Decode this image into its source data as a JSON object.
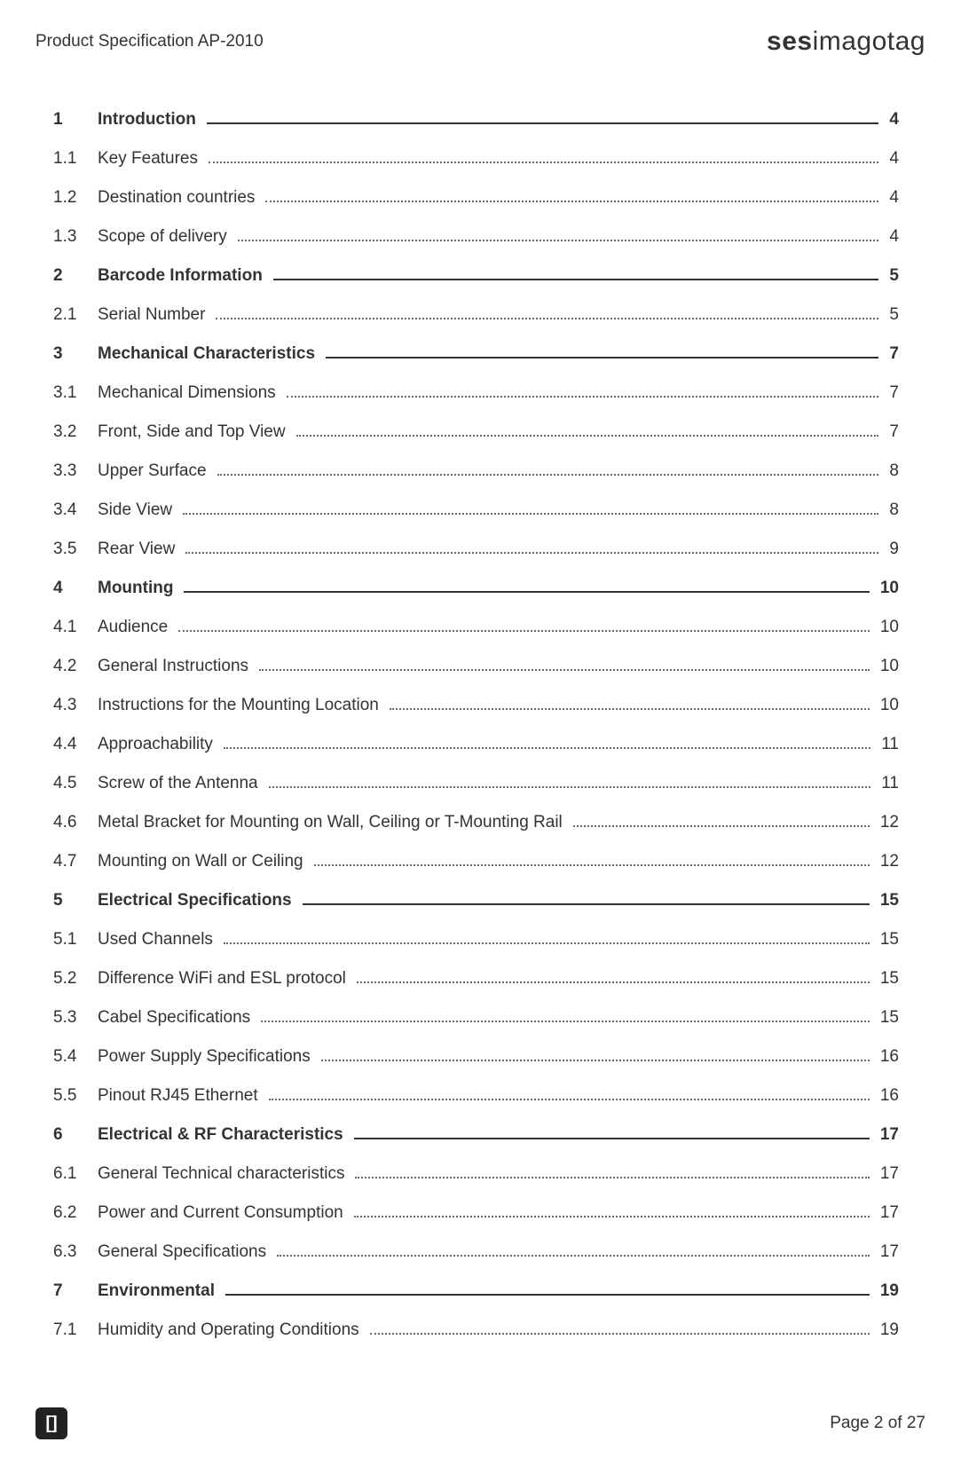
{
  "header": {
    "title": "Product Specification AP-2010",
    "logo_bold": "ses",
    "logo_light": "imagotag"
  },
  "toc": [
    {
      "num": "1",
      "label": "Introduction",
      "page": "4",
      "section": true
    },
    {
      "num": "1.1",
      "label": "Key Features",
      "page": "4",
      "section": false
    },
    {
      "num": "1.2",
      "label": "Destination countries",
      "page": "4",
      "section": false
    },
    {
      "num": "1.3",
      "label": "Scope of delivery",
      "page": "4",
      "section": false
    },
    {
      "num": "2",
      "label": "Barcode Information",
      "page": "5",
      "section": true
    },
    {
      "num": "2.1",
      "label": "Serial Number",
      "page": "5",
      "section": false
    },
    {
      "num": "3",
      "label": "Mechanical Characteristics",
      "page": "7",
      "section": true
    },
    {
      "num": "3.1",
      "label": "Mechanical Dimensions",
      "page": "7",
      "section": false
    },
    {
      "num": "3.2",
      "label": "Front, Side and Top View",
      "page": "7",
      "section": false
    },
    {
      "num": "3.3",
      "label": "Upper Surface",
      "page": "8",
      "section": false
    },
    {
      "num": "3.4",
      "label": "Side View",
      "page": "8",
      "section": false
    },
    {
      "num": "3.5",
      "label": "Rear View",
      "page": "9",
      "section": false
    },
    {
      "num": "4",
      "label": "Mounting",
      "page": "10",
      "section": true
    },
    {
      "num": "4.1",
      "label": "Audience",
      "page": "10",
      "section": false
    },
    {
      "num": "4.2",
      "label": "General Instructions",
      "page": "10",
      "section": false
    },
    {
      "num": "4.3",
      "label": "Instructions for the Mounting Location",
      "page": "10",
      "section": false
    },
    {
      "num": "4.4",
      "label": "Approachability",
      "page": "11",
      "section": false
    },
    {
      "num": "4.5",
      "label": "Screw of the Antenna",
      "page": "11",
      "section": false
    },
    {
      "num": "4.6",
      "label": "Metal Bracket for Mounting on Wall, Ceiling or T-Mounting Rail",
      "page": "12",
      "section": false
    },
    {
      "num": "4.7",
      "label": "Mounting on Wall or Ceiling",
      "page": "12",
      "section": false
    },
    {
      "num": "5",
      "label": "Electrical Specifications",
      "page": "15",
      "section": true
    },
    {
      "num": "5.1",
      "label": "Used Channels",
      "page": "15",
      "section": false
    },
    {
      "num": "5.2",
      "label": "Difference WiFi and ESL protocol",
      "page": "15",
      "section": false
    },
    {
      "num": "5.3",
      "label": "Cabel Specifications",
      "page": "15",
      "section": false
    },
    {
      "num": "5.4",
      "label": "Power Supply Specifications",
      "page": "16",
      "section": false
    },
    {
      "num": "5.5",
      "label": "Pinout RJ45 Ethernet",
      "page": "16",
      "section": false
    },
    {
      "num": "6",
      "label": "Electrical & RF Characteristics",
      "page": "17",
      "section": true
    },
    {
      "num": "6.1",
      "label": "General Technical characteristics",
      "page": "17",
      "section": false
    },
    {
      "num": "6.2",
      "label": "Power and Current Consumption",
      "page": "17",
      "section": false
    },
    {
      "num": "6.3",
      "label": "General Specifications",
      "page": "17",
      "section": false
    },
    {
      "num": "7",
      "label": "Environmental",
      "page": "19",
      "section": true
    },
    {
      "num": "7.1",
      "label": "Humidity and Operating Conditions",
      "page": "19",
      "section": false
    }
  ],
  "footer": {
    "icon_glyph": "[]",
    "page_text": "Page 2 of 27"
  }
}
